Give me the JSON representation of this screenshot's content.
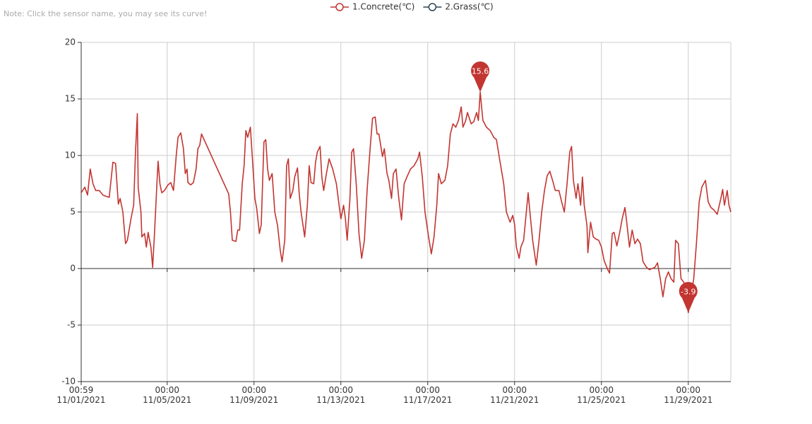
{
  "note": "Note: Click the sensor name, you may see its curve!",
  "chart_data": {
    "type": "line",
    "series": [
      {
        "name": "1.Concrete(℃)",
        "color": "#c23531",
        "x": [
          "2021-11-01 00:59",
          "2021-11-01 05:00",
          "2021-11-01 08:00",
          "2021-11-01 11:00",
          "2021-11-01 14:00",
          "2021-11-01 17:00",
          "2021-11-01 21:00",
          "2021-11-02 01:00",
          "2021-11-02 04:00",
          "2021-11-02 08:00",
          "2021-11-02 12:00",
          "2021-11-02 15:00",
          "2021-11-02 18:00",
          "2021-11-02 20:00",
          "2021-11-02 23:00",
          "2021-11-03 02:00",
          "2021-11-03 04:00",
          "2021-11-03 08:00",
          "2021-11-03 11:00",
          "2021-11-03 13:00",
          "2021-11-03 15:00",
          "2021-11-03 16:00",
          "2021-11-03 19:00",
          "2021-11-03 20:00",
          "2021-11-03 23:00",
          "2021-11-04 01:00",
          "2021-11-04 03:00",
          "2021-11-04 06:00",
          "2021-11-04 08:00",
          "2021-11-04 10:00",
          "2021-11-04 13:00",
          "2021-11-04 14:00",
          "2021-11-04 16:00",
          "2021-11-04 18:00",
          "2021-11-04 21:00",
          "2021-11-05 01:00",
          "2021-11-05 04:00",
          "2021-11-05 07:00",
          "2021-11-05 10:00",
          "2021-11-05 12:00",
          "2021-11-05 15:00",
          "2021-11-05 18:00",
          "2021-11-05 20:00",
          "2021-11-05 22:00",
          "2021-11-05 23:00",
          "2021-11-06 02:00",
          "2021-11-06 05:00",
          "2021-11-06 08:00",
          "2021-11-06 10:00",
          "2021-11-06 12:00",
          "2021-11-06 14:00",
          "2021-11-07 20:00",
          "2021-11-07 22:00",
          "2021-11-08 00:00",
          "2021-11-08 04:00",
          "2021-11-08 06:00",
          "2021-11-08 08:00",
          "2021-11-08 11:00",
          "2021-11-08 13:00",
          "2021-11-08 15:00",
          "2021-11-08 17:00",
          "2021-11-08 20:00",
          "2021-11-08 22:00",
          "2021-11-09 01:00",
          "2021-11-09 03:00",
          "2021-11-09 06:00",
          "2021-11-09 08:00",
          "2021-11-09 11:00",
          "2021-11-09 13:00",
          "2021-11-09 15:00",
          "2021-11-09 17:00",
          "2021-11-09 20:00",
          "2021-11-09 23:00",
          "2021-11-10 02:00",
          "2021-11-10 05:00",
          "2021-11-10 07:00",
          "2021-11-10 10:00",
          "2021-11-10 12:00",
          "2021-11-10 14:00",
          "2021-11-10 16:00",
          "2021-11-10 19:00",
          "2021-11-10 21:00",
          "2021-11-11 00:00",
          "2021-11-11 02:00",
          "2021-11-11 04:00",
          "2021-11-11 08:00",
          "2021-11-11 11:00",
          "2021-11-11 13:00",
          "2021-11-11 15:00",
          "2021-11-11 18:00",
          "2021-11-11 20:00",
          "2021-11-11 22:00",
          "2021-11-12 01:00",
          "2021-11-12 03:00",
          "2021-11-12 05:00",
          "2021-11-12 08:00",
          "2021-11-12 11:00",
          "2021-11-12 15:00",
          "2021-11-12 19:00",
          "2021-11-12 22:00",
          "2021-11-13 00:00",
          "2021-11-13 03:00",
          "2021-11-13 05:00",
          "2021-11-13 07:00",
          "2021-11-13 10:00",
          "2021-11-13 12:00",
          "2021-11-13 14:00",
          "2021-11-13 17:00",
          "2021-11-13 20:00",
          "2021-11-13 23:00",
          "2021-11-14 02:00",
          "2021-11-14 05:00",
          "2021-11-14 08:00",
          "2021-11-14 11:00",
          "2021-11-14 14:00",
          "2021-11-14 16:00",
          "2021-11-14 18:00",
          "2021-11-14 22:00",
          "2021-11-15 00:00",
          "2021-11-15 03:00",
          "2021-11-15 05:00",
          "2021-11-15 08:00",
          "2021-11-15 10:00",
          "2021-11-15 13:00",
          "2021-11-15 16:00",
          "2021-11-15 19:00",
          "2021-11-15 22:00",
          "2021-11-16 01:00",
          "2021-11-16 05:00",
          "2021-11-16 09:00",
          "2021-11-16 13:00",
          "2021-11-16 15:00",
          "2021-11-16 18:00",
          "2021-11-16 21:00",
          "2021-11-17 01:00",
          "2021-11-17 04:00",
          "2021-11-17 07:00",
          "2021-11-17 10:00",
          "2021-11-17 12:00",
          "2021-11-17 15:00",
          "2021-11-17 19:00",
          "2021-11-17 22:00",
          "2021-11-18 01:00",
          "2021-11-18 04:00",
          "2021-11-18 07:00",
          "2021-11-18 10:00",
          "2021-11-18 13:00",
          "2021-11-18 15:00",
          "2021-11-18 18:00",
          "2021-11-18 20:00",
          "2021-11-19 00:00",
          "2021-11-19 03:00",
          "2021-11-19 06:00",
          "2021-11-19 08:00",
          "2021-11-19 10:00",
          "2021-11-19 13:00",
          "2021-11-19 17:00",
          "2021-11-19 21:00",
          "2021-11-20 01:00",
          "2021-11-20 04:00",
          "2021-11-20 08:00",
          "2021-11-20 12:00",
          "2021-11-20 15:00",
          "2021-11-20 19:00",
          "2021-11-20 22:00",
          "2021-11-21 00:00",
          "2021-11-21 02:00",
          "2021-11-21 05:00",
          "2021-11-21 07:00",
          "2021-11-21 10:00",
          "2021-11-21 13:00",
          "2021-11-21 15:00",
          "2021-11-21 17:00",
          "2021-11-21 20:00",
          "2021-11-22 00:00",
          "2021-11-22 03:00",
          "2021-11-22 06:00",
          "2021-11-22 09:00",
          "2021-11-22 12:00",
          "2021-11-22 15:00",
          "2021-11-22 18:00",
          "2021-11-22 21:00",
          "2021-11-23 01:00",
          "2021-11-23 04:00",
          "2021-11-23 07:00",
          "2021-11-23 10:00",
          "2021-11-23 13:00",
          "2021-11-23 15:00",
          "2021-11-23 17:00",
          "2021-11-23 20:00",
          "2021-11-23 22:00",
          "2021-11-24 01:00",
          "2021-11-24 03:00",
          "2021-11-24 05:00",
          "2021-11-24 08:00",
          "2021-11-24 09:00",
          "2021-11-24 12:00",
          "2021-11-24 15:00",
          "2021-11-24 18:00",
          "2021-11-24 21:00",
          "2021-11-25 00:00",
          "2021-11-25 03:00",
          "2021-11-25 07:00",
          "2021-11-25 09:00",
          "2021-11-25 12:00",
          "2021-11-25 14:00",
          "2021-11-25 17:00",
          "2021-11-25 20:00",
          "2021-11-25 23:00",
          "2021-11-26 02:00",
          "2021-11-26 04:00",
          "2021-11-26 07:00",
          "2021-11-26 10:00",
          "2021-11-26 13:00",
          "2021-11-26 16:00",
          "2021-11-26 19:00",
          "2021-11-26 22:00",
          "2021-11-27 02:00",
          "2021-11-27 05:00",
          "2021-11-27 08:00",
          "2021-11-27 11:00",
          "2021-11-27 14:00",
          "2021-11-27 17:00",
          "2021-11-27 20:00",
          "2021-11-27 23:00",
          "2021-11-28 02:00",
          "2021-11-28 05:00",
          "2021-11-28 08:00",
          "2021-11-28 10:00",
          "2021-11-28 13:00",
          "2021-11-28 16:00",
          "2021-11-28 19:00",
          "2021-11-28 22:00",
          "2021-11-29 00:00",
          "2021-11-29 03:00",
          "2021-11-29 06:00",
          "2021-11-29 09:00",
          "2021-11-29 12:00",
          "2021-11-29 15:00",
          "2021-11-29 19:00",
          "2021-11-29 22:00",
          "2021-11-30 01:00",
          "2021-11-30 04:00",
          "2021-11-30 08:00",
          "2021-11-30 12:00",
          "2021-11-30 14:00",
          "2021-11-30 16:00",
          "2021-11-30 19:00",
          "2021-11-30 21:00",
          "2021-11-30 23:00"
        ],
        "values": [
          6.7,
          7.2,
          6.5,
          8.8,
          7.5,
          6.9,
          6.9,
          6.5,
          6.4,
          6.3,
          9.4,
          9.3,
          5.7,
          6.2,
          5.0,
          2.2,
          2.5,
          4.4,
          5.6,
          10.3,
          13.7,
          7.2,
          5.0,
          2.8,
          3.1,
          1.9,
          3.2,
          1.9,
          0.1,
          3.1,
          8.1,
          9.5,
          7.5,
          6.7,
          6.9,
          7.4,
          7.6,
          6.9,
          10.0,
          11.6,
          12.0,
          10.6,
          8.4,
          8.8,
          7.6,
          7.4,
          7.6,
          8.8,
          10.6,
          10.9,
          11.9,
          6.6,
          5.0,
          2.5,
          2.4,
          3.4,
          3.4,
          7.5,
          9.1,
          12.2,
          11.6,
          12.5,
          10.0,
          6.2,
          5.3,
          3.1,
          3.9,
          11.2,
          11.4,
          8.8,
          7.8,
          8.4,
          5.0,
          3.8,
          1.6,
          0.6,
          2.5,
          9.1,
          9.7,
          6.2,
          6.9,
          8.1,
          8.9,
          6.6,
          5.0,
          2.8,
          5.6,
          9.1,
          7.6,
          7.5,
          9.4,
          10.3,
          10.8,
          8.1,
          6.9,
          8.4,
          9.7,
          8.8,
          7.5,
          5.6,
          4.4,
          5.6,
          4.4,
          2.5,
          6.2,
          10.3,
          10.6,
          7.5,
          3.1,
          0.9,
          2.5,
          6.9,
          10.3,
          13.3,
          13.4,
          11.9,
          11.9,
          9.9,
          10.6,
          8.4,
          7.8,
          6.2,
          8.4,
          8.8,
          6.2,
          4.3,
          7.5,
          8.1,
          8.8,
          9.1,
          9.7,
          10.3,
          8.1,
          5.0,
          2.8,
          1.3,
          2.8,
          5.6,
          8.4,
          7.5,
          7.8,
          9.1,
          11.9,
          12.8,
          12.5,
          13.1,
          14.3,
          12.5,
          13.1,
          13.8,
          12.8,
          13.0,
          13.8,
          13.1,
          15.6,
          13.1,
          12.5,
          12.2,
          11.6,
          11.4,
          9.4,
          7.5,
          5.0,
          4.1,
          4.7,
          3.9,
          1.9,
          0.9,
          1.9,
          2.5,
          5.0,
          6.7,
          5.0,
          2.5,
          0.3,
          2.5,
          5.0,
          6.9,
          8.2,
          8.6,
          7.8,
          6.9,
          6.9,
          5.9,
          5.0,
          7.5,
          10.3,
          10.8,
          7.8,
          6.2,
          7.5,
          5.6,
          8.1,
          5.6,
          3.8,
          1.4,
          4.1,
          2.8,
          2.6,
          2.5,
          1.9,
          0.7,
          -0.1,
          -0.4,
          3.1,
          3.2,
          2.0,
          3.1,
          4.4,
          5.4,
          4.1,
          1.9,
          3.4,
          2.2,
          2.6,
          2.2,
          0.6,
          0.1,
          -0.1,
          0,
          0.1,
          0.5,
          -0.9,
          -2.5,
          -0.9,
          -0.3,
          -0.9,
          -1.2,
          2.5,
          2.2,
          -0.9,
          -1.2,
          -2.5,
          -3.9,
          -2.5,
          -0.9,
          2.2,
          5.9,
          7.2,
          7.8,
          5.9,
          5.4,
          5.2,
          4.8,
          6.2,
          7.0,
          5.6,
          6.9,
          5.6,
          5.0
        ]
      },
      {
        "name": "2.Grass(℃)",
        "color": "#2f4554",
        "x": [],
        "values": []
      }
    ],
    "markers": [
      {
        "x": "2021-11-19 10:00",
        "value": 15.6
      },
      {
        "x": "2021-11-29 00:00",
        "value": -3.9
      }
    ],
    "xlim": [
      "2021-11-01 00:59",
      "2021-11-30 23:00"
    ],
    "xticks": [
      {
        "value": "2021-11-01 00:59",
        "label": "00:59\n11/01/2021"
      },
      {
        "value": "2021-11-05 00:00",
        "label": "00:00\n11/05/2021"
      },
      {
        "value": "2021-11-09 00:00",
        "label": "00:00\n11/09/2021"
      },
      {
        "value": "2021-11-13 00:00",
        "label": "00:00\n11/13/2021"
      },
      {
        "value": "2021-11-17 00:00",
        "label": "00:00\n11/17/2021"
      },
      {
        "value": "2021-11-21 00:00",
        "label": "00:00\n11/21/2021"
      },
      {
        "value": "2021-11-25 00:00",
        "label": "00:00\n11/25/2021"
      },
      {
        "value": "2021-11-29 00:00",
        "label": "00:00\n11/29/2021"
      }
    ],
    "ylim": [
      -10,
      20
    ],
    "yticks": [
      -10,
      -5,
      0,
      5,
      10,
      15,
      20
    ],
    "grid": true
  }
}
